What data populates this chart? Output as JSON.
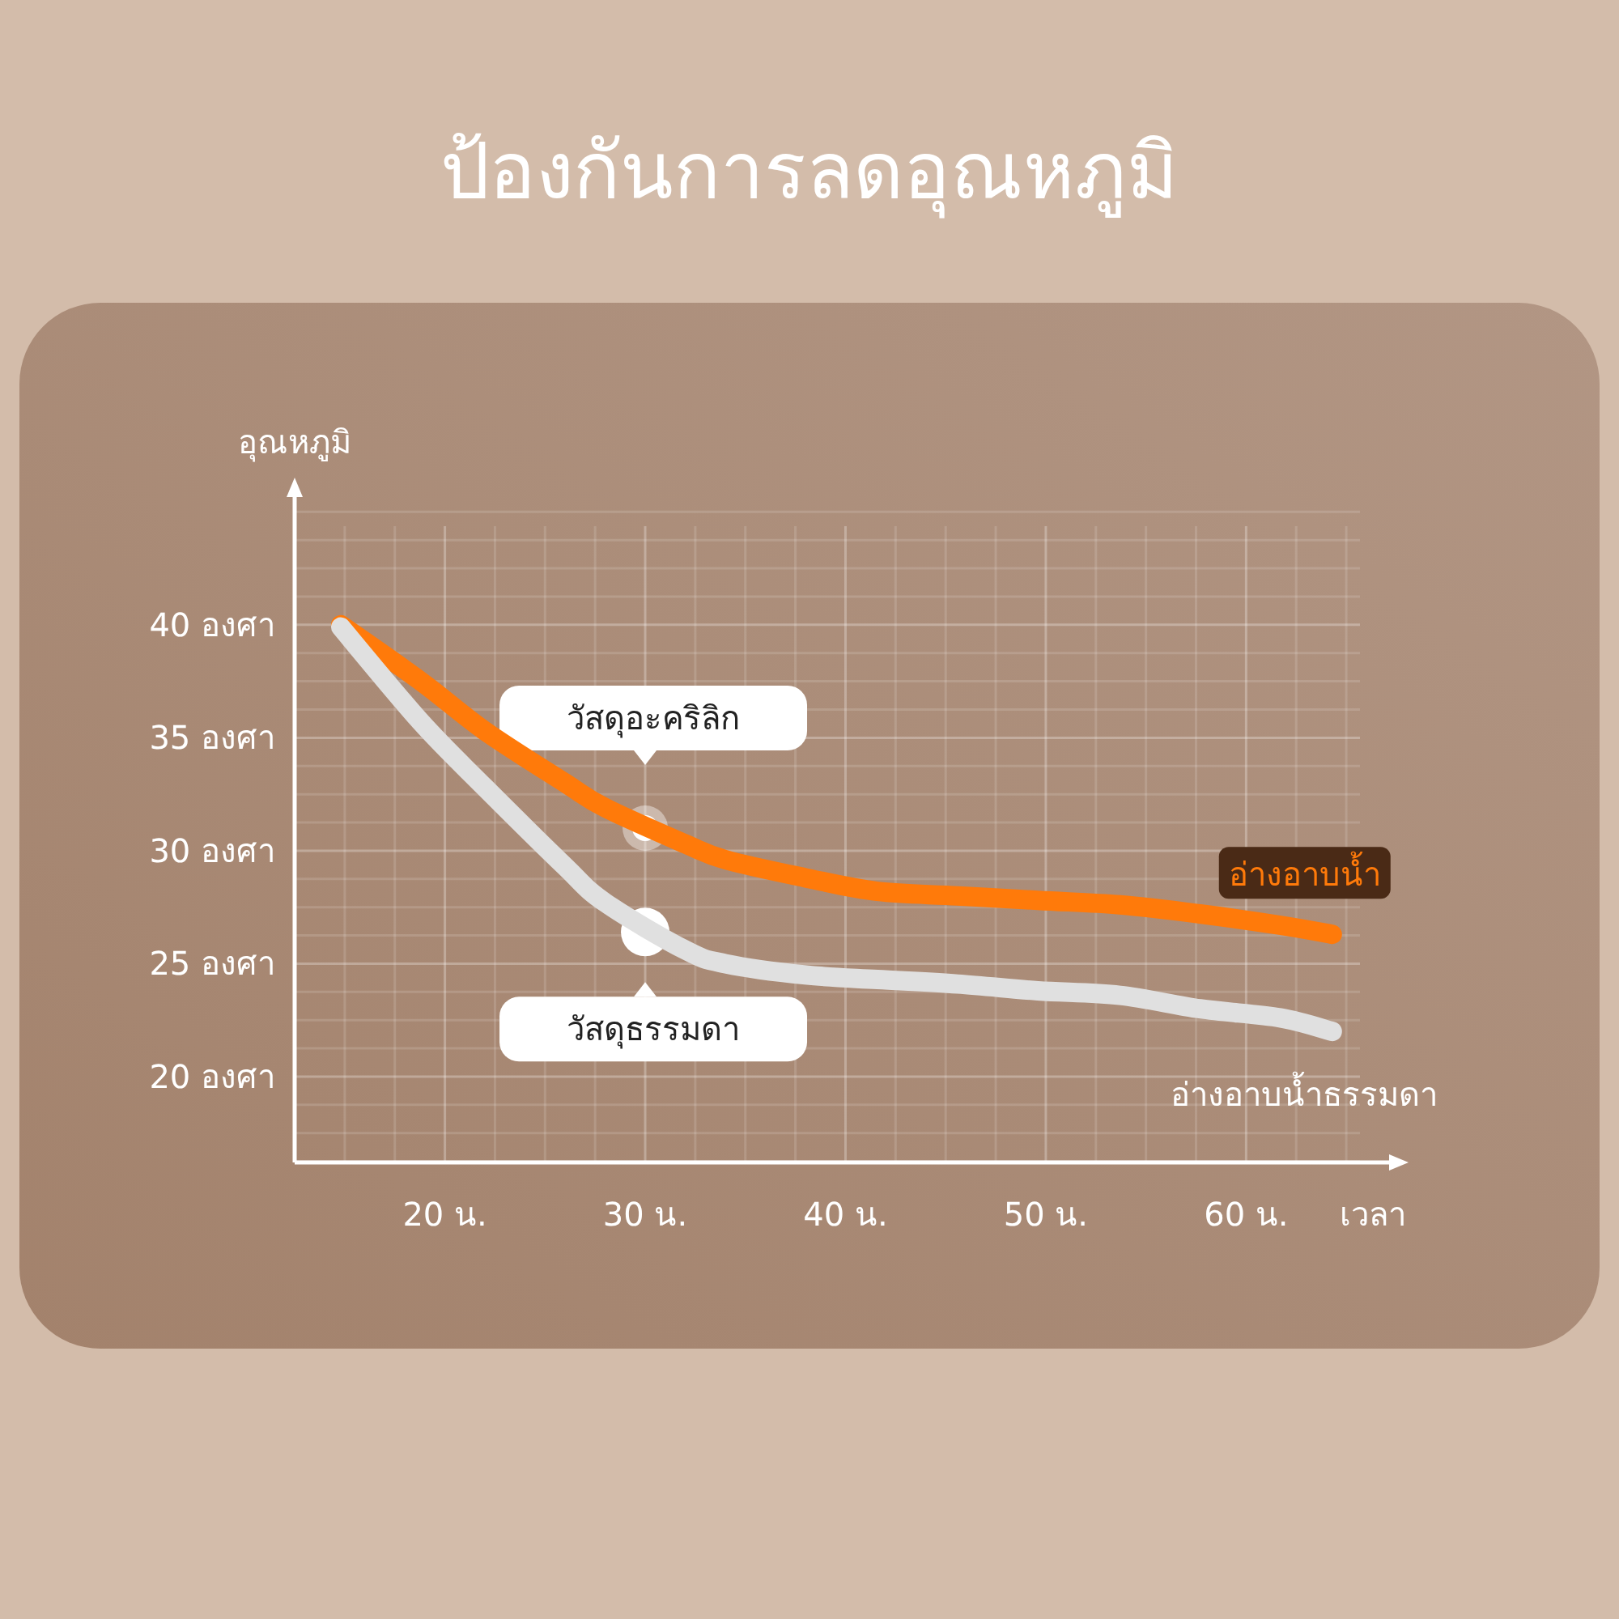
{
  "chart_data": {
    "type": "line",
    "title": "ป้องกันการลดอุณหภูมิ",
    "xlabel": "เวลา",
    "ylabel": "อุณหภูมิ",
    "xlim": [
      12.5,
      67.3
    ],
    "ylim": [
      16.2,
      45.8
    ],
    "xticks": [
      {
        "value": 20,
        "label": "20 น."
      },
      {
        "value": 30,
        "label": "30 น."
      },
      {
        "value": 40,
        "label": "40 น."
      },
      {
        "value": 50,
        "label": "50 น."
      },
      {
        "value": 60,
        "label": "60 น."
      }
    ],
    "yticks": [
      {
        "value": 20,
        "label": "20 องศา"
      },
      {
        "value": 25,
        "label": "25 องศา"
      },
      {
        "value": 30,
        "label": "30 องศา"
      },
      {
        "value": 35,
        "label": "35 องศา"
      },
      {
        "value": 40,
        "label": "40 องศา"
      }
    ],
    "grid": true,
    "marker": "none",
    "line_style": "solid",
    "series": [
      {
        "name": "อ่างอาบน้ำ",
        "color": "#ff7a0a",
        "x": [
          14.8,
          18.8,
          22,
          26,
          28,
          32,
          34,
          38,
          41.6,
          45.6,
          49.6,
          53.7,
          57.7,
          61.7,
          64.3
        ],
        "values": [
          40,
          37.5,
          35.3,
          33.0,
          31.9,
          30.3,
          29.6,
          28.8,
          28.2,
          28.0,
          27.8,
          27.6,
          27.2,
          26.7,
          26.3
        ]
      },
      {
        "name": "อ่างอาบน้ำธรรมดา",
        "color": "#e0e0e0",
        "x": [
          14.8,
          18.8,
          22,
          26,
          28,
          32,
          34,
          38,
          41.6,
          45.6,
          49.6,
          53.7,
          57.7,
          61.7,
          64.3
        ],
        "values": [
          39.9,
          35.7,
          32.8,
          29.3,
          27.7,
          25.6,
          25.0,
          24.5,
          24.3,
          24.1,
          23.8,
          23.6,
          23.0,
          22.6,
          22.0
        ]
      }
    ],
    "annotations": [
      {
        "text": "วัสดุอะคริลิก",
        "x": 30,
        "y": 31.0
      },
      {
        "text": "วัสดุธรรมดา",
        "x": 30,
        "y": 26.4
      }
    ]
  }
}
